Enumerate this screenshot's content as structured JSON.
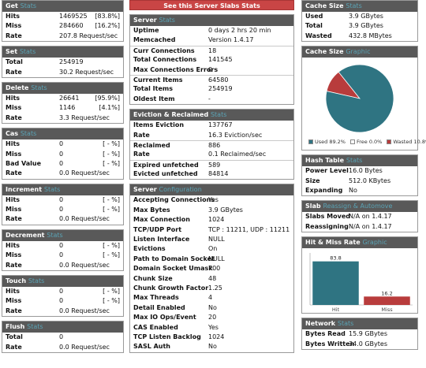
{
  "colors": {
    "teal": "#2f7482",
    "red": "#b83c3c",
    "header": "#595959",
    "accent": "#5aa3b5",
    "banner": "#c94545"
  },
  "left": [
    {
      "title": "Get",
      "sub": "Stats",
      "rows": [
        {
          "label": "Hits",
          "v1": "1469525",
          "v2": "[83.8%]"
        },
        {
          "label": "Miss",
          "v1": "284660",
          "v2": "[16.2%]"
        },
        {
          "label": "Rate",
          "v1": "207.8 Request/sec",
          "v2": ""
        }
      ]
    },
    {
      "title": "Set",
      "sub": "Stats",
      "rows": [
        {
          "label": "Total",
          "v1": "254919",
          "v2": ""
        },
        {
          "label": "Rate",
          "v1": "30.2 Request/sec",
          "v2": ""
        }
      ]
    },
    {
      "title": "Delete",
      "sub": "Stats",
      "rows": [
        {
          "label": "Hits",
          "v1": "26641",
          "v2": "[95.9%]"
        },
        {
          "label": "Miss",
          "v1": "1146",
          "v2": "[4.1%]"
        },
        {
          "label": "Rate",
          "v1": "3.3 Request/sec",
          "v2": ""
        }
      ]
    },
    {
      "title": "Cas",
      "sub": "Stats",
      "rows": [
        {
          "label": "Hits",
          "v1": "0",
          "v2": "[ - %]"
        },
        {
          "label": "Miss",
          "v1": "0",
          "v2": "[ - %]"
        },
        {
          "label": "Bad Value",
          "v1": "0",
          "v2": "[ - %]"
        },
        {
          "label": "Rate",
          "v1": "0.0 Request/sec",
          "v2": ""
        }
      ]
    },
    {
      "title": "Increment",
      "sub": "Stats",
      "rows": [
        {
          "label": "Hits",
          "v1": "0",
          "v2": "[ - %]"
        },
        {
          "label": "Miss",
          "v1": "0",
          "v2": "[ - %]"
        },
        {
          "label": "Rate",
          "v1": "0.0 Request/sec",
          "v2": ""
        }
      ]
    },
    {
      "title": "Decrement",
      "sub": "Stats",
      "rows": [
        {
          "label": "Hits",
          "v1": "0",
          "v2": "[ - %]"
        },
        {
          "label": "Miss",
          "v1": "0",
          "v2": "[ - %]"
        },
        {
          "label": "Rate",
          "v1": "0.0 Request/sec",
          "v2": ""
        }
      ]
    },
    {
      "title": "Touch",
      "sub": "Stats",
      "rows": [
        {
          "label": "Hits",
          "v1": "0",
          "v2": "[ - %]"
        },
        {
          "label": "Miss",
          "v1": "0",
          "v2": "[ - %]"
        },
        {
          "label": "Rate",
          "v1": "0.0 Request/sec",
          "v2": ""
        }
      ]
    },
    {
      "title": "Flush",
      "sub": "Stats",
      "rows": [
        {
          "label": "Total",
          "v1": "0",
          "v2": ""
        },
        {
          "label": "Rate",
          "v1": "0.0 Request/sec",
          "v2": ""
        }
      ]
    }
  ],
  "banner": "See this Server Slabs Stats",
  "middle": [
    {
      "title": "Server",
      "sub": "Stats",
      "rows": [
        {
          "label": "Uptime",
          "v1": "0 days 2 hrs 20 min"
        },
        {
          "label": "Memcached",
          "v1": "Version 1.4.17"
        },
        {
          "sep": true,
          "label": "Curr Connections",
          "v1": "18"
        },
        {
          "label": "Total Connections",
          "v1": "141545"
        },
        {
          "label": "Max Connections Errors",
          "v1": "0"
        },
        {
          "sep": true,
          "label": "Current Items",
          "v1": "64580"
        },
        {
          "label": "Total Items",
          "v1": "254919"
        },
        {
          "label": "Oldest Item",
          "v1": "-"
        }
      ]
    },
    {
      "title": "Eviction & Reclaimed",
      "sub": "Stats",
      "rows": [
        {
          "label": "Items Eviction",
          "v1": "137767"
        },
        {
          "label": "Rate",
          "v1": "16.3 Eviction/sec"
        },
        {
          "sep": true,
          "label": "Reclaimed",
          "v1": "886"
        },
        {
          "label": "Rate",
          "v1": "0.1 Reclaimed/sec"
        },
        {
          "sep": true,
          "label": "Expired unfetched",
          "v1": "589"
        },
        {
          "label": "Evicted unfetched",
          "v1": "84814"
        }
      ]
    },
    {
      "title": "Server",
      "sub": "Configuration",
      "rows": [
        {
          "label": "Accepting Connections",
          "v1": "Yes"
        },
        {
          "label": "Max Bytes",
          "v1": "3.9 GBytes"
        },
        {
          "label": "Max Connection",
          "v1": "1024"
        },
        {
          "label": "TCP/UDP Port",
          "v1": "TCP : 11211, UDP : 11211"
        },
        {
          "label": "Listen Interface",
          "v1": "NULL"
        },
        {
          "label": "Evictions",
          "v1": "On"
        },
        {
          "label": "Path to Domain Socket",
          "v1": "NULL"
        },
        {
          "label": "Domain Socket Umask",
          "v1": "700"
        },
        {
          "label": "Chunk Size",
          "v1": "48"
        },
        {
          "label": "Chunk Growth Factor",
          "v1": "1.25"
        },
        {
          "label": "Max Threads",
          "v1": "4"
        },
        {
          "label": "Detail Enabled",
          "v1": "No"
        },
        {
          "label": "Max IO Ops/Event",
          "v1": "20"
        },
        {
          "label": "CAS Enabled",
          "v1": "Yes"
        },
        {
          "label": "TCP Listen Backlog",
          "v1": "1024"
        },
        {
          "label": "SASL Auth",
          "v1": "No"
        }
      ]
    }
  ],
  "cache_size": {
    "title": "Cache Size",
    "sub": "Stats",
    "rows": [
      {
        "label": "Used",
        "v1": "3.9 GBytes"
      },
      {
        "label": "Total",
        "v1": "3.9 GBytes"
      },
      {
        "label": "Wasted",
        "v1": "432.8 MBytes"
      }
    ]
  },
  "cache_graphic": {
    "title": "Cache Size",
    "sub": "Graphic"
  },
  "hash_table": {
    "title": "Hash Table",
    "sub": "Stats",
    "rows": [
      {
        "label": "Power Level",
        "v1": "16.0 Bytes"
      },
      {
        "label": "Size",
        "v1": "512.0 KBytes"
      },
      {
        "label": "Expanding",
        "v1": "No"
      }
    ]
  },
  "slab": {
    "title": "Slab",
    "sub": "Reassign & Automove",
    "rows": [
      {
        "label": "Slabs Moved",
        "v1": "N/A on 1.4.17"
      },
      {
        "label": "Reassigning",
        "v1": "N/A on 1.4.17"
      }
    ]
  },
  "hitmiss_graphic": {
    "title": "Hit & Miss Rate",
    "sub": "Graphic"
  },
  "network": {
    "title": "Network",
    "sub": "Stats",
    "rows": [
      {
        "label": "Bytes Read",
        "v1": "15.9 GBytes"
      },
      {
        "label": "Bytes Written",
        "v1": "34.0 GBytes"
      }
    ]
  },
  "chart_data": [
    {
      "type": "pie",
      "labels": [
        "Used",
        "Free",
        "Wasted"
      ],
      "values": [
        89.2,
        0.0,
        10.8
      ],
      "legend": [
        "Used 89.2%",
        "Free 0.0%",
        "Wasted 10.8%"
      ],
      "colors": [
        "#2f7482",
        "#ffffff",
        "#b83c3c"
      ],
      "legend_position": "bottom"
    },
    {
      "type": "bar",
      "categories": [
        "Hit",
        "Miss"
      ],
      "values": [
        83.8,
        16.2
      ],
      "colors": [
        "#2f7482",
        "#b83c3c"
      ],
      "ylim": [
        0,
        100
      ]
    }
  ]
}
